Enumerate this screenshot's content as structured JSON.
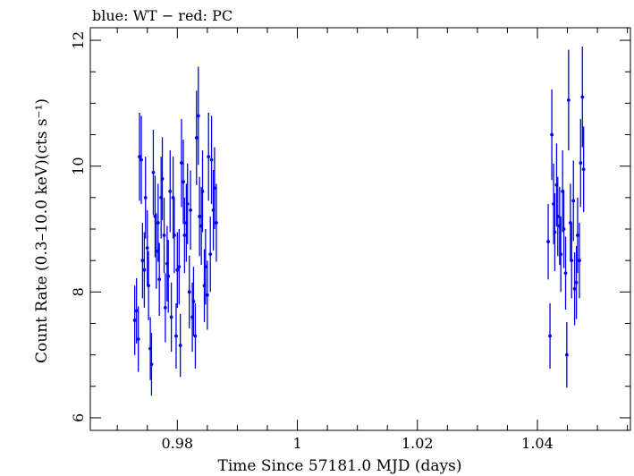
{
  "chart_data": {
    "type": "scatter",
    "title": "blue: WT − red: PC",
    "xlabel": "Time Since 57181.0 MJD (days)",
    "ylabel": "Count Rate (0.3–10.0 keV)(cts s⁻¹)",
    "xlim": [
      0.9655,
      1.0555
    ],
    "ylim": [
      5.8,
      12.2
    ],
    "xticks": [
      {
        "value": 0.98,
        "label": "0.98"
      },
      {
        "value": 1.0,
        "label": "1"
      },
      {
        "value": 1.02,
        "label": "1.02"
      },
      {
        "value": 1.04,
        "label": "1.04"
      }
    ],
    "yticks": [
      {
        "value": 6,
        "label": "6"
      },
      {
        "value": 8,
        "label": "8"
      },
      {
        "value": 10,
        "label": "10"
      },
      {
        "value": 12,
        "label": "12"
      }
    ],
    "series": [
      {
        "name": "WT",
        "color": "#0000ee",
        "points": [
          [
            0.9729,
            7.55,
            0.55
          ],
          [
            0.9732,
            7.7,
            0.52
          ],
          [
            0.9735,
            7.25,
            0.52
          ],
          [
            0.9737,
            10.15,
            0.7
          ],
          [
            0.974,
            10.1,
            0.7
          ],
          [
            0.9742,
            8.5,
            0.6
          ],
          [
            0.9745,
            8.35,
            0.6
          ],
          [
            0.9747,
            9.5,
            0.65
          ],
          [
            0.975,
            8.7,
            0.6
          ],
          [
            0.9752,
            8.1,
            0.55
          ],
          [
            0.9755,
            7.1,
            0.5
          ],
          [
            0.9757,
            6.85,
            0.5
          ],
          [
            0.976,
            9.9,
            0.68
          ],
          [
            0.9763,
            9.2,
            0.65
          ],
          [
            0.9765,
            8.65,
            0.6
          ],
          [
            0.9768,
            9.1,
            0.62
          ],
          [
            0.977,
            8.2,
            0.58
          ],
          [
            0.9773,
            9.5,
            0.65
          ],
          [
            0.9775,
            9.8,
            0.66
          ],
          [
            0.9778,
            8.9,
            0.6
          ],
          [
            0.978,
            7.75,
            0.55
          ],
          [
            0.9783,
            8.45,
            0.6
          ],
          [
            0.9785,
            8.25,
            0.58
          ],
          [
            0.9788,
            9.6,
            0.65
          ],
          [
            0.979,
            7.6,
            0.55
          ],
          [
            0.9793,
            9.5,
            0.65
          ],
          [
            0.9795,
            8.9,
            0.6
          ],
          [
            0.9798,
            7.3,
            0.52
          ],
          [
            0.98,
            8.35,
            0.6
          ],
          [
            0.9803,
            8.4,
            0.6
          ],
          [
            0.9805,
            7.15,
            0.5
          ],
          [
            0.9807,
            10.05,
            0.7
          ],
          [
            0.981,
            9.75,
            0.67
          ],
          [
            0.9812,
            8.9,
            0.6
          ],
          [
            0.9815,
            9.1,
            0.62
          ],
          [
            0.9817,
            9.4,
            0.64
          ],
          [
            0.982,
            8.0,
            0.58
          ],
          [
            0.9822,
            9.3,
            0.63
          ],
          [
            0.9825,
            7.6,
            0.55
          ],
          [
            0.9827,
            7.85,
            0.55
          ],
          [
            0.983,
            7.3,
            0.52
          ],
          [
            0.9832,
            10.45,
            0.75
          ],
          [
            0.9835,
            10.8,
            0.78
          ],
          [
            0.9837,
            9.2,
            0.63
          ],
          [
            0.984,
            9.05,
            0.62
          ],
          [
            0.9842,
            9.6,
            0.65
          ],
          [
            0.9845,
            8.1,
            0.58
          ],
          [
            0.9847,
            8.4,
            0.6
          ],
          [
            0.985,
            7.95,
            0.55
          ],
          [
            0.9852,
            10.15,
            0.7
          ],
          [
            0.9855,
            8.6,
            0.6
          ],
          [
            0.9857,
            10.1,
            0.7
          ],
          [
            0.986,
            9.3,
            0.64
          ],
          [
            0.9862,
            9.65,
            0.65
          ],
          [
            0.9865,
            9.1,
            0.62
          ]
        ]
      },
      {
        "name": "WT",
        "color": "#0000ee",
        "points": [
          [
            1.0418,
            8.8,
            0.6
          ],
          [
            1.0421,
            7.3,
            0.52
          ],
          [
            1.0424,
            10.5,
            0.72
          ],
          [
            1.0427,
            9.4,
            0.64
          ],
          [
            1.0429,
            8.95,
            0.62
          ],
          [
            1.0432,
            9.7,
            0.66
          ],
          [
            1.0434,
            9.2,
            0.63
          ],
          [
            1.0437,
            9.05,
            0.62
          ],
          [
            1.0439,
            8.6,
            0.6
          ],
          [
            1.0442,
            9.6,
            0.65
          ],
          [
            1.0444,
            9.0,
            0.62
          ],
          [
            1.0447,
            8.3,
            0.58
          ],
          [
            1.0449,
            7.0,
            0.52
          ],
          [
            1.0452,
            11.05,
            0.8
          ],
          [
            1.0455,
            9.1,
            0.62
          ],
          [
            1.0457,
            8.5,
            0.6
          ],
          [
            1.046,
            9.45,
            0.64
          ],
          [
            1.0462,
            8.05,
            0.58
          ],
          [
            1.0465,
            8.15,
            0.58
          ],
          [
            1.0467,
            8.9,
            0.6
          ],
          [
            1.047,
            8.5,
            0.6
          ],
          [
            1.0472,
            10.05,
            0.7
          ],
          [
            1.0475,
            11.1,
            0.8
          ],
          [
            1.0477,
            9.95,
            0.68
          ]
        ]
      }
    ]
  }
}
